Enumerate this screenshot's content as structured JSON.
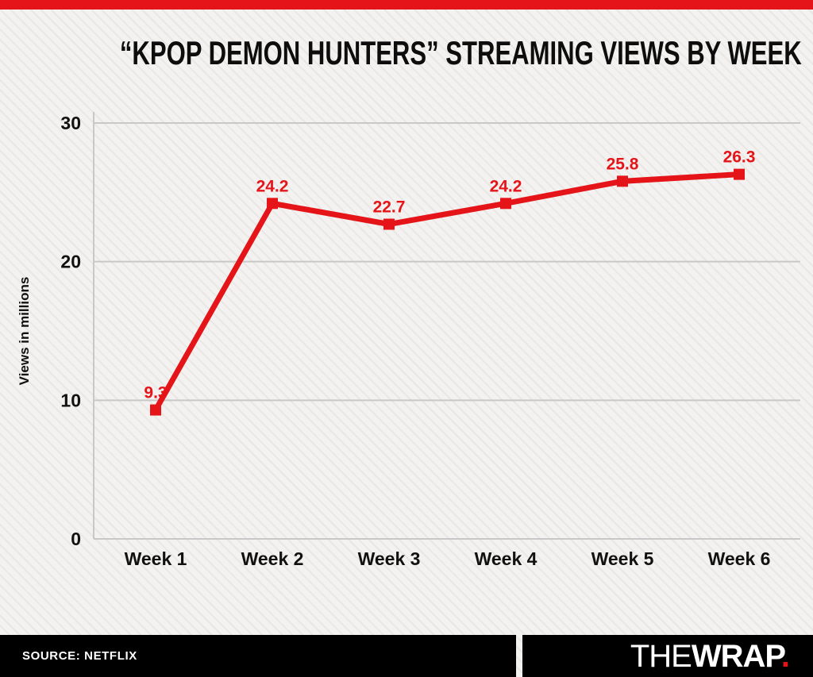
{
  "chart_data": {
    "type": "line",
    "title": "“KPOP DEMON HUNTERS” STREAMING VIEWS BY WEEK",
    "categories": [
      "Week 1",
      "Week 2",
      "Week 3",
      "Week 4",
      "Week 5",
      "Week 6"
    ],
    "values": [
      9.3,
      24.2,
      22.7,
      24.2,
      25.8,
      26.3
    ],
    "data_labels": [
      "9.3",
      "24.2",
      "22.7",
      "24.2",
      "25.8",
      "26.3"
    ],
    "xlabel": "",
    "ylabel": "Views in millions",
    "ylim": [
      0,
      30
    ],
    "yticks": [
      0,
      10,
      20,
      30
    ],
    "grid": true,
    "legend": "none",
    "marker": "square",
    "line_color": "#e51419"
  },
  "footer": {
    "source_label": "SOURCE: NETFLIX",
    "logo": {
      "the": "THE",
      "wrap": "WRAP",
      "dot": "."
    }
  },
  "colors": {
    "accent": "#e51419",
    "grid_line": "#c8c8c8",
    "text": "#111111",
    "background": "#f3f2f0",
    "stripe": "#e8e7e4",
    "footer_bg": "#000000",
    "footer_text": "#ffffff"
  }
}
